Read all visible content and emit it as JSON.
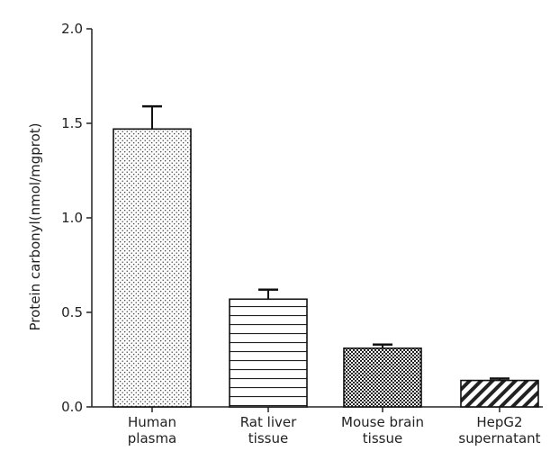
{
  "chart_data": {
    "type": "bar",
    "title": "",
    "xlabel": "",
    "ylabel": "Protein carbonyl(nmol/mgprot)",
    "ylim": [
      0,
      2.0
    ],
    "yticks": [
      "0.0",
      "0.5",
      "1.0",
      "1.5",
      "2.0"
    ],
    "grid": false,
    "legend": "none",
    "categories": [
      [
        "Human",
        "plasma"
      ],
      [
        "Rat liver",
        "tissue"
      ],
      [
        "Mouse brain",
        "tissue"
      ],
      [
        "HepG2",
        "supernatant"
      ]
    ],
    "series": [
      {
        "values": [
          1.47,
          0.57,
          0.31,
          0.14
        ],
        "error": [
          0.12,
          0.05,
          0.02,
          0.01
        ],
        "patterns": [
          "dots",
          "horizontal-lines",
          "checkerboard",
          "diagonal-hatch"
        ]
      }
    ]
  },
  "colors": {
    "axis": "#222222",
    "bar_edge": "#111111",
    "bar_fill": "#ffffff",
    "pattern": "#222222"
  }
}
